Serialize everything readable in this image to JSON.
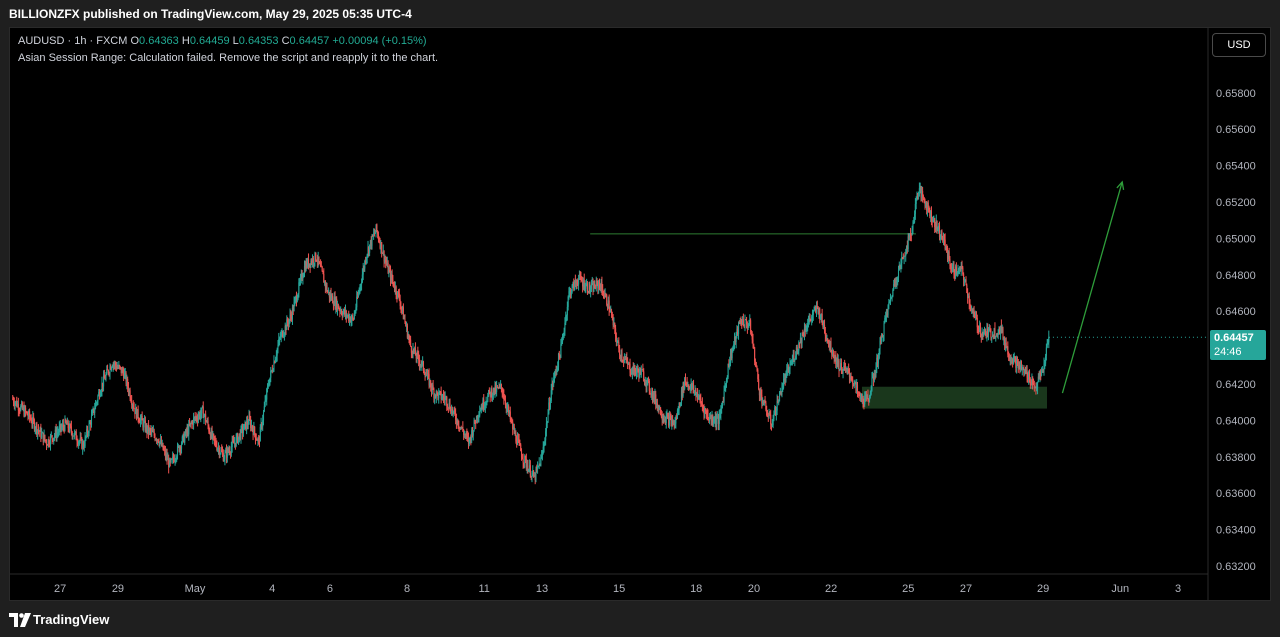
{
  "header": {
    "published": "BILLIONZFX published on TradingView.com, May 29, 2025 05:35 UTC-4"
  },
  "legend": {
    "symbol": "AUDUSD · 1h · FXCM",
    "o_label": "O",
    "o": "0.64363",
    "h_label": "H",
    "h": "0.64459",
    "l_label": "L",
    "l": "0.64353",
    "c_label": "C",
    "c": "0.64457",
    "change": "+0.00094 (+0.15%)"
  },
  "script_note": "Asian Session Range: Calculation failed. Remove the script and reapply it to the chart.",
  "currency_button": "USD",
  "price_badge": {
    "price": "0.64457",
    "countdown": "24:46"
  },
  "footer": {
    "brand": "TradingView"
  },
  "colors": {
    "up": "#26a69a",
    "down": "#ef5350",
    "background": "#000000",
    "annotation": "#2e7d32",
    "badge": "#26a69a"
  },
  "chart_data": {
    "type": "candlestick",
    "symbol": "AUDUSD",
    "timeframe": "1h",
    "ylim": [
      0.6315,
      0.6605
    ],
    "y_ticks": [
      "0.63200",
      "0.63400",
      "0.63600",
      "0.63800",
      "0.64000",
      "0.64200",
      "0.64400",
      "0.64600",
      "0.64800",
      "0.65000",
      "0.65200",
      "0.65400",
      "0.65600",
      "0.65800"
    ],
    "x_labels": [
      "27",
      "29",
      "May",
      "4",
      "6",
      "8",
      "11",
      "13",
      "15",
      "18",
      "20",
      "22",
      "25",
      "27",
      "29",
      "Jun",
      "3"
    ],
    "x_label_index": [
      0,
      3,
      7,
      11,
      14,
      18,
      22,
      25,
      29,
      33,
      36,
      40,
      44,
      47,
      51,
      55,
      58
    ],
    "x_range_index": [
      -2.6,
      59.5
    ],
    "close_path": [
      [
        -2.5,
        0.6412
      ],
      [
        -1.6,
        0.6402
      ],
      [
        -0.7,
        0.6388
      ],
      [
        0.3,
        0.6398
      ],
      [
        1.2,
        0.6386
      ],
      [
        2.1,
        0.6418
      ],
      [
        2.7,
        0.6432
      ],
      [
        3.3,
        0.6426
      ],
      [
        3.9,
        0.6405
      ],
      [
        4.5,
        0.6395
      ],
      [
        5.1,
        0.639
      ],
      [
        5.7,
        0.6375
      ],
      [
        6.3,
        0.6388
      ],
      [
        6.9,
        0.64
      ],
      [
        7.4,
        0.6405
      ],
      [
        7.9,
        0.639
      ],
      [
        8.5,
        0.638
      ],
      [
        9.2,
        0.639
      ],
      [
        9.8,
        0.64
      ],
      [
        10.3,
        0.6388
      ],
      [
        10.8,
        0.642
      ],
      [
        11.4,
        0.6445
      ],
      [
        12.0,
        0.6458
      ],
      [
        12.7,
        0.6485
      ],
      [
        13.3,
        0.649
      ],
      [
        13.9,
        0.647
      ],
      [
        14.6,
        0.646
      ],
      [
        15.2,
        0.6455
      ],
      [
        15.9,
        0.6492
      ],
      [
        16.4,
        0.6505
      ],
      [
        17.0,
        0.6483
      ],
      [
        17.6,
        0.6467
      ],
      [
        18.2,
        0.644
      ],
      [
        18.8,
        0.643
      ],
      [
        19.4,
        0.6415
      ],
      [
        20.0,
        0.6412
      ],
      [
        20.6,
        0.64
      ],
      [
        21.2,
        0.6388
      ],
      [
        21.7,
        0.6405
      ],
      [
        22.3,
        0.6415
      ],
      [
        22.9,
        0.6418
      ],
      [
        23.5,
        0.6395
      ],
      [
        24.0,
        0.638
      ],
      [
        24.6,
        0.6368
      ],
      [
        25.0,
        0.638
      ],
      [
        25.5,
        0.6418
      ],
      [
        26.0,
        0.644
      ],
      [
        26.4,
        0.647
      ],
      [
        26.9,
        0.6478
      ],
      [
        27.5,
        0.6472
      ],
      [
        28.0,
        0.6475
      ],
      [
        28.5,
        0.6462
      ],
      [
        29.0,
        0.6438
      ],
      [
        29.6,
        0.6428
      ],
      [
        30.2,
        0.6426
      ],
      [
        30.7,
        0.6415
      ],
      [
        31.3,
        0.6402
      ],
      [
        31.9,
        0.6398
      ],
      [
        32.4,
        0.6422
      ],
      [
        33.0,
        0.6415
      ],
      [
        33.6,
        0.6402
      ],
      [
        34.2,
        0.64
      ],
      [
        34.7,
        0.6432
      ],
      [
        35.3,
        0.6455
      ],
      [
        35.8,
        0.6452
      ],
      [
        36.3,
        0.6415
      ],
      [
        36.9,
        0.6398
      ],
      [
        37.5,
        0.642
      ],
      [
        38.1,
        0.6436
      ],
      [
        38.7,
        0.6452
      ],
      [
        39.3,
        0.6462
      ],
      [
        39.9,
        0.6442
      ],
      [
        40.4,
        0.643
      ],
      [
        41.0,
        0.6425
      ],
      [
        41.5,
        0.6412
      ],
      [
        41.9,
        0.6411
      ],
      [
        42.3,
        0.6428
      ],
      [
        42.8,
        0.6455
      ],
      [
        43.3,
        0.6476
      ],
      [
        43.9,
        0.6495
      ],
      [
        44.2,
        0.6505
      ],
      [
        44.5,
        0.6527
      ],
      [
        44.8,
        0.6522
      ],
      [
        45.3,
        0.651
      ],
      [
        45.8,
        0.65
      ],
      [
        46.3,
        0.6482
      ],
      [
        46.8,
        0.6482
      ],
      [
        47.3,
        0.646
      ],
      [
        47.8,
        0.6448
      ],
      [
        48.3,
        0.6448
      ],
      [
        48.8,
        0.645
      ],
      [
        49.2,
        0.6437
      ],
      [
        49.7,
        0.643
      ],
      [
        50.2,
        0.6425
      ],
      [
        50.6,
        0.6418
      ],
      [
        51.0,
        0.6428
      ],
      [
        51.3,
        0.64457
      ]
    ],
    "annotations": {
      "resistance_line": {
        "price": 0.65025,
        "from_index": 27.5,
        "to_index": 44.4
      },
      "support_zone": {
        "price_top": 0.64185,
        "price_bottom": 0.64065,
        "from_index": 41.6,
        "to_index": 51.2
      },
      "projection_arrow": {
        "from": [
          52.0,
          0.6415
        ],
        "to": [
          55.1,
          0.6531
        ]
      }
    }
  }
}
